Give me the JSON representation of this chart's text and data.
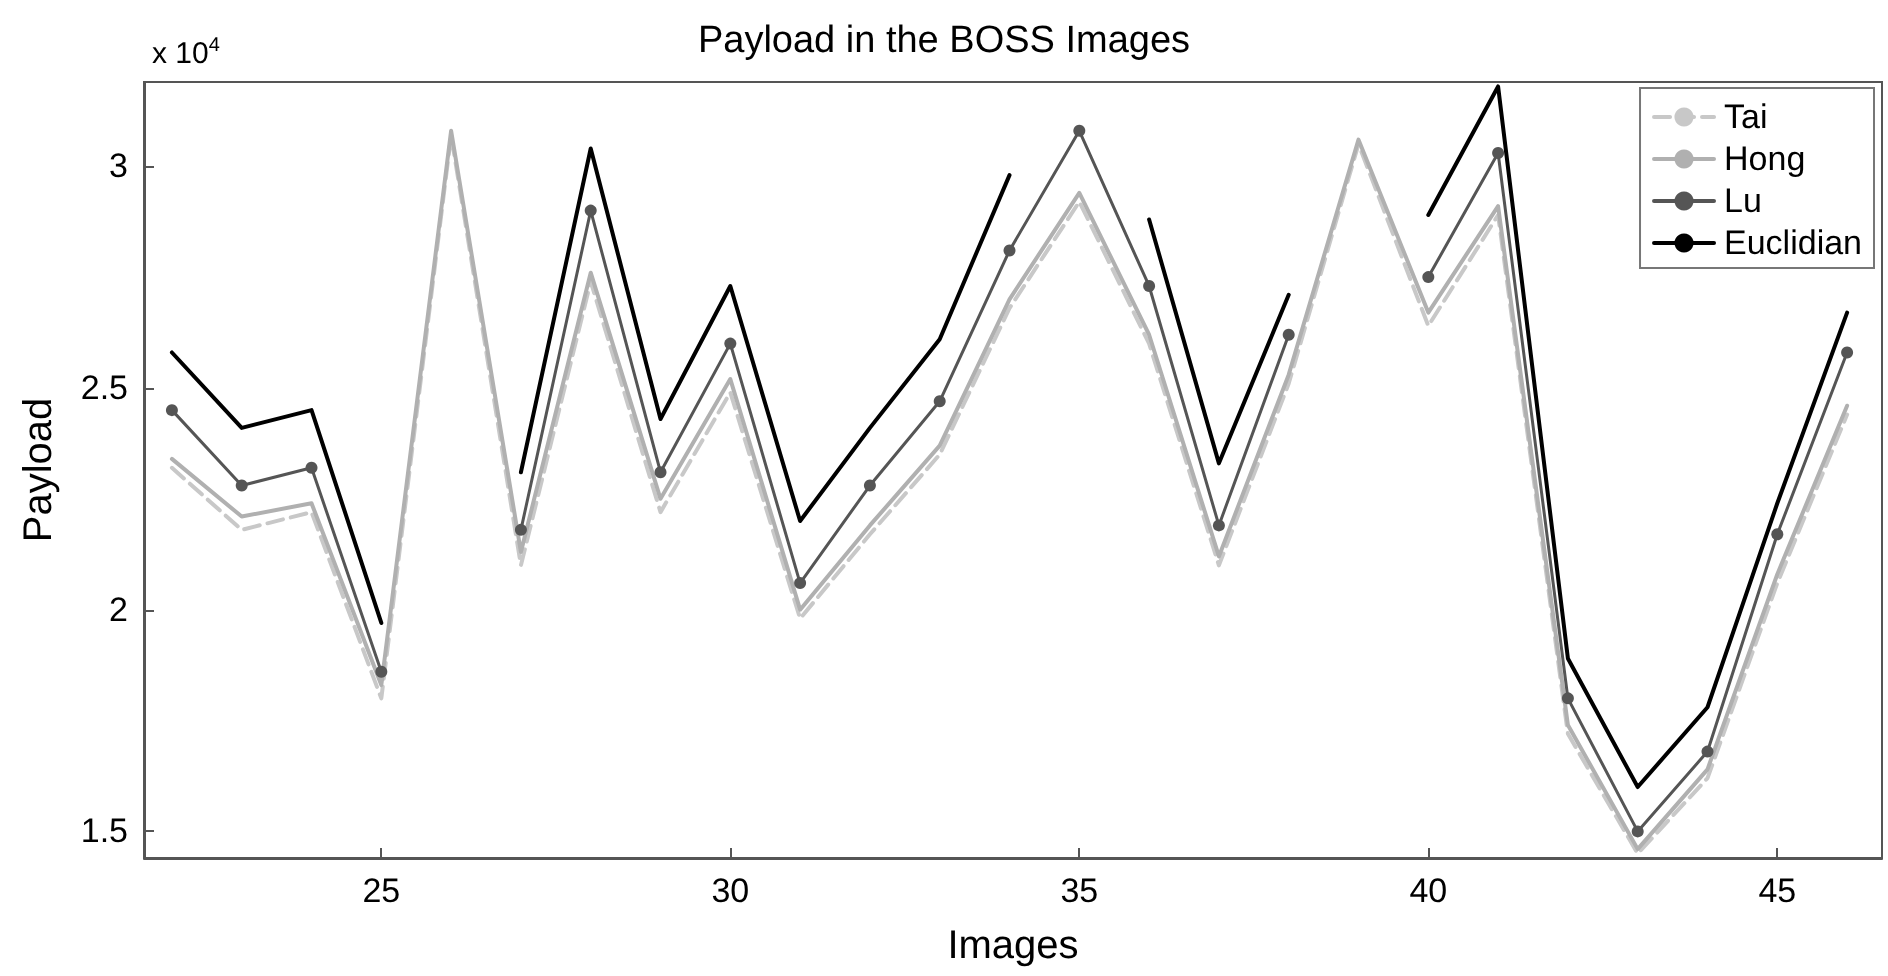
{
  "chart_data": {
    "type": "line",
    "title": "Payload in the BOSS Images",
    "xlabel": "Images",
    "ylabel": "Payload",
    "annotations": [
      "x 10$^{4}$"
    ],
    "x": [
      22,
      23,
      24,
      25,
      26,
      27,
      28,
      29,
      30,
      31,
      32,
      33,
      34,
      35,
      36,
      37,
      38,
      39,
      40,
      41,
      42,
      43,
      44,
      45,
      46
    ],
    "series": [
      {
        "name": "Tai",
        "color": "#c8c8c8",
        "line_style": "dashed",
        "marker": "none",
        "values": [
          2.32,
          2.18,
          2.22,
          1.8,
          3.07,
          2.1,
          2.74,
          2.22,
          2.49,
          1.98,
          2.17,
          2.35,
          2.68,
          2.92,
          2.6,
          2.1,
          2.51,
          3.05,
          2.64,
          2.89,
          1.72,
          1.45,
          1.62,
          2.06,
          2.44
        ]
      },
      {
        "name": "Hong",
        "color": "#b0b0b0",
        "line_style": "solid",
        "marker": "none",
        "values": [
          2.34,
          2.21,
          2.24,
          1.83,
          3.08,
          2.13,
          2.76,
          2.25,
          2.52,
          2.0,
          2.19,
          2.37,
          2.7,
          2.94,
          2.62,
          2.12,
          2.53,
          3.06,
          2.67,
          2.91,
          1.74,
          1.46,
          1.64,
          2.08,
          2.46
        ]
      },
      {
        "name": "Lu",
        "color": "#555555",
        "line_style": "solid",
        "marker": "circle",
        "values": [
          2.45,
          2.28,
          2.32,
          1.86,
          null,
          2.18,
          2.9,
          2.31,
          2.6,
          2.06,
          2.28,
          2.47,
          2.81,
          3.08,
          2.73,
          2.19,
          2.62,
          null,
          2.75,
          3.03,
          1.8,
          1.5,
          1.68,
          2.17,
          2.58
        ]
      },
      {
        "name": "Euclidian",
        "color": "#000000",
        "line_style": "solid",
        "marker": "none",
        "values": [
          2.58,
          2.41,
          2.45,
          1.97,
          null,
          2.31,
          3.04,
          2.43,
          2.73,
          2.2,
          2.41,
          2.61,
          2.98,
          null,
          2.88,
          2.33,
          2.71,
          null,
          2.89,
          3.18,
          1.89,
          1.6,
          1.78,
          2.24,
          2.67
        ]
      }
    ],
    "xlim": [
      21.6,
      46.5
    ],
    "xticks": [
      25,
      30,
      35,
      40,
      45
    ],
    "ylim": [
      1.44,
      3.19
    ],
    "yticks": [
      1.5,
      2,
      2.5,
      3
    ],
    "grid": false,
    "legend": "top right"
  }
}
